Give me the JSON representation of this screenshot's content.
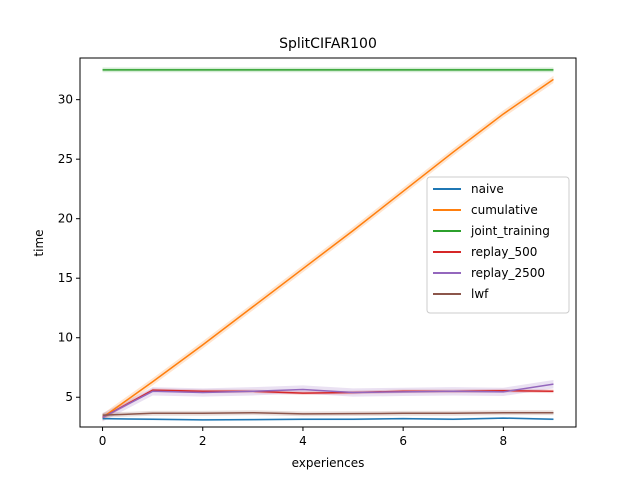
{
  "chart_data": {
    "type": "line",
    "title": "SplitCIFAR100",
    "xlabel": "experiences",
    "ylabel": "time",
    "xlim": [
      -0.45,
      9.45
    ],
    "ylim": [
      2.5,
      33.5
    ],
    "xticks": [
      0,
      2,
      4,
      6,
      8
    ],
    "yticks": [
      5,
      10,
      15,
      20,
      25,
      30
    ],
    "grid": false,
    "legend_position": "center-right",
    "x": [
      0,
      1,
      2,
      3,
      4,
      5,
      6,
      7,
      8,
      9
    ],
    "series": [
      {
        "name": "naive",
        "color": "#1f77b4",
        "values": [
          3.2,
          3.15,
          3.1,
          3.12,
          3.15,
          3.15,
          3.2,
          3.15,
          3.25,
          3.15
        ],
        "band": 0.08
      },
      {
        "name": "cumulative",
        "color": "#ff7f0e",
        "values": [
          3.3,
          6.3,
          9.4,
          12.6,
          15.8,
          19.0,
          22.3,
          25.6,
          28.8,
          31.7
        ],
        "band": 0.3
      },
      {
        "name": "joint_training",
        "color": "#2ca02c",
        "values": [
          32.5,
          32.5,
          32.5,
          32.5,
          32.5,
          32.5,
          32.5,
          32.5,
          32.5,
          32.5
        ],
        "band": 0.2
      },
      {
        "name": "replay_500",
        "color": "#d62728",
        "values": [
          3.3,
          5.6,
          5.5,
          5.5,
          5.35,
          5.4,
          5.5,
          5.5,
          5.55,
          5.5
        ],
        "band": 0.15
      },
      {
        "name": "replay_2500",
        "color": "#9467bd",
        "values": [
          3.3,
          5.5,
          5.4,
          5.5,
          5.65,
          5.4,
          5.45,
          5.5,
          5.45,
          6.1
        ],
        "band": 0.35
      },
      {
        "name": "lwf",
        "color": "#8c564b",
        "values": [
          3.5,
          3.65,
          3.65,
          3.7,
          3.6,
          3.62,
          3.65,
          3.65,
          3.7,
          3.7
        ],
        "band": 0.2
      }
    ]
  }
}
